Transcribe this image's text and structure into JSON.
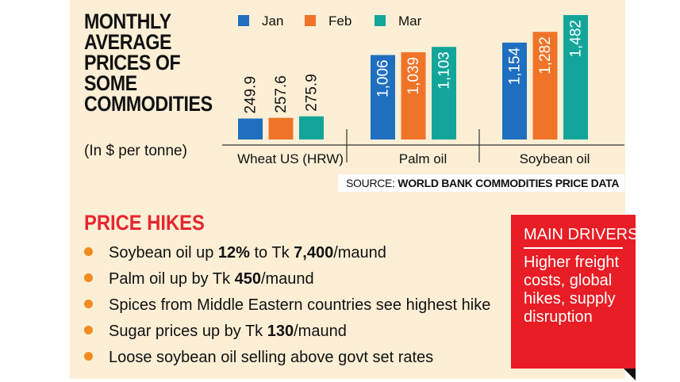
{
  "title": "MONTHLY AVERAGE PRICES OF SOME COMMODITIES",
  "unit": "(In $ per tonne)",
  "source_label": "SOURCE:",
  "source": "WORLD BANK COMMODITIES PRICE DATA",
  "chart_data": {
    "type": "bar",
    "categories": [
      "Wheat US (HRW)",
      "Palm oil",
      "Soybean oil"
    ],
    "series": [
      {
        "name": "Jan",
        "color": "#1f6fc0",
        "values": [
          249.9,
          1006,
          1154
        ],
        "labels": [
          "249.9",
          "1,006",
          "1,154"
        ]
      },
      {
        "name": "Feb",
        "color": "#f07428",
        "values": [
          257.6,
          1039,
          1282
        ],
        "labels": [
          "257.6",
          "1,039",
          "1,282"
        ]
      },
      {
        "name": "Mar",
        "color": "#13a59a",
        "values": [
          275.9,
          1103,
          1482
        ],
        "labels": [
          "275.9",
          "1,103",
          "1,482"
        ]
      }
    ],
    "legend": "top",
    "grid": false
  },
  "hikes": {
    "title": "PRICE HIKES",
    "items": [
      [
        "Soybean oil up ",
        "12%",
        " to Tk ",
        "7,400",
        "/maund"
      ],
      [
        "Palm oil up by Tk ",
        "450",
        "/maund",
        "",
        ""
      ],
      [
        "Spices from Middle Eastern countries see highest hike",
        "",
        "",
        "",
        ""
      ],
      [
        "Sugar prices up by Tk ",
        "130",
        "/maund",
        "",
        ""
      ],
      [
        "Loose soybean oil selling above govt set rates",
        "",
        "",
        "",
        ""
      ]
    ]
  },
  "drivers": {
    "title": "MAIN DRIVERS",
    "text": "Higher freight costs, global hikes, supply disruption"
  }
}
